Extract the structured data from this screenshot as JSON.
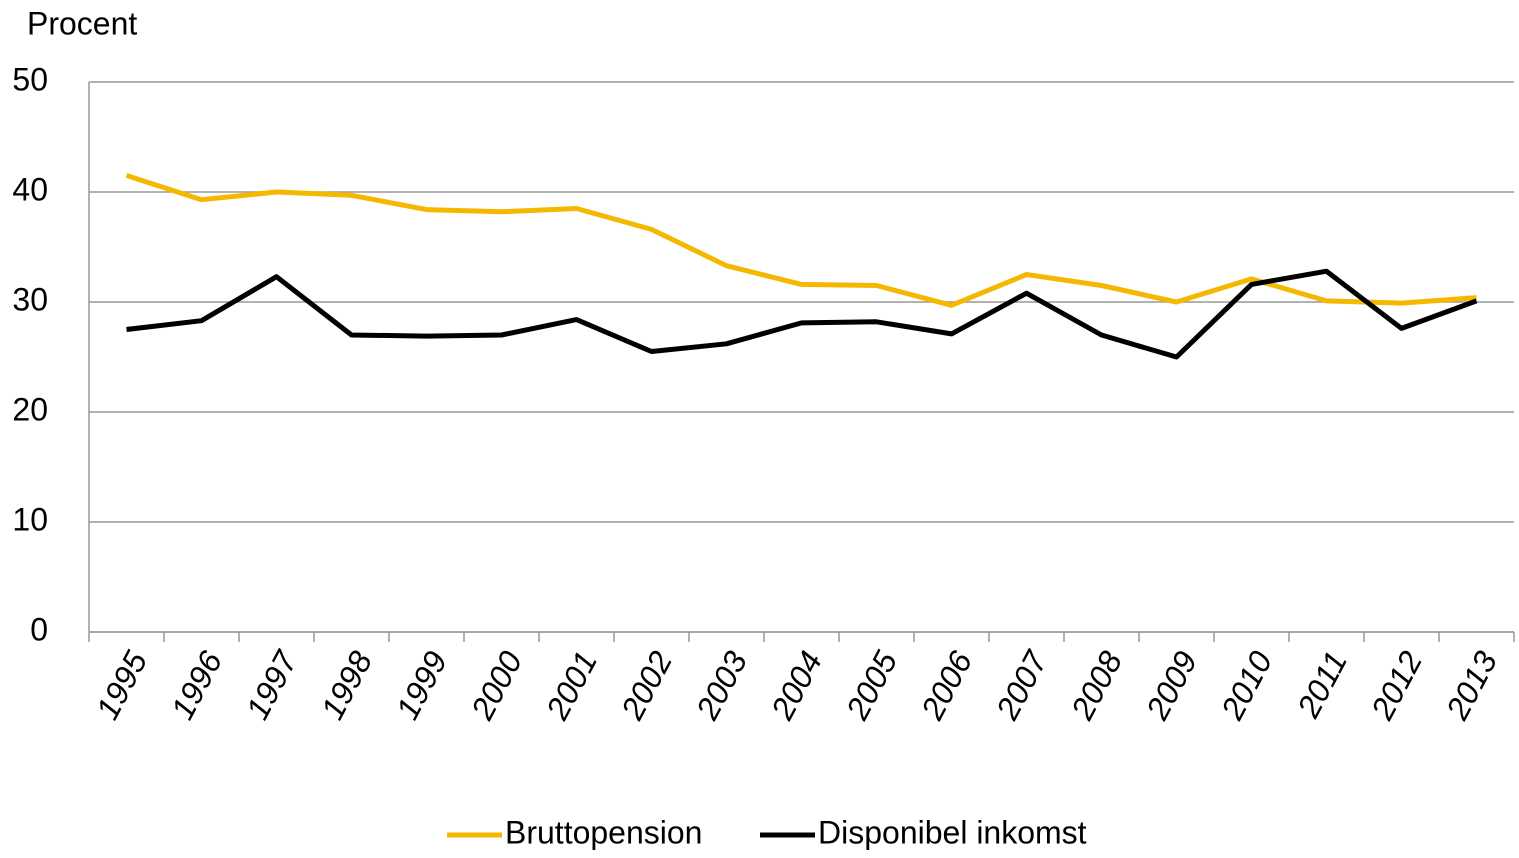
{
  "chart_data": {
    "type": "line",
    "y_label": "Procent",
    "categories": [
      "1995",
      "1996",
      "1997",
      "1998",
      "1999",
      "2000",
      "2001",
      "2002",
      "2003",
      "2004",
      "2005",
      "2006",
      "2007",
      "2008",
      "2009",
      "2010",
      "2011",
      "2012",
      "2013"
    ],
    "series": [
      {
        "name": "Bruttopension",
        "color": "#f5b800",
        "values": [
          41.5,
          39.3,
          40,
          39.7,
          38.4,
          38.2,
          38.5,
          36.6,
          33.3,
          31.6,
          31.5,
          29.7,
          32.5,
          31.5,
          30,
          32.1,
          30.1,
          29.9,
          30.4
        ]
      },
      {
        "name": "Disponibel inkomst",
        "color": "#000000",
        "values": [
          27.5,
          28.3,
          32.3,
          27,
          26.9,
          27,
          28.4,
          25.5,
          26.2,
          28.1,
          28.2,
          27.1,
          30.8,
          27,
          25,
          31.6,
          32.8,
          27.6,
          30.1
        ]
      }
    ],
    "ylim": [
      0,
      50
    ],
    "yticks": [
      0,
      10,
      20,
      30,
      40,
      50
    ],
    "grid": true,
    "legend": "bottom"
  }
}
